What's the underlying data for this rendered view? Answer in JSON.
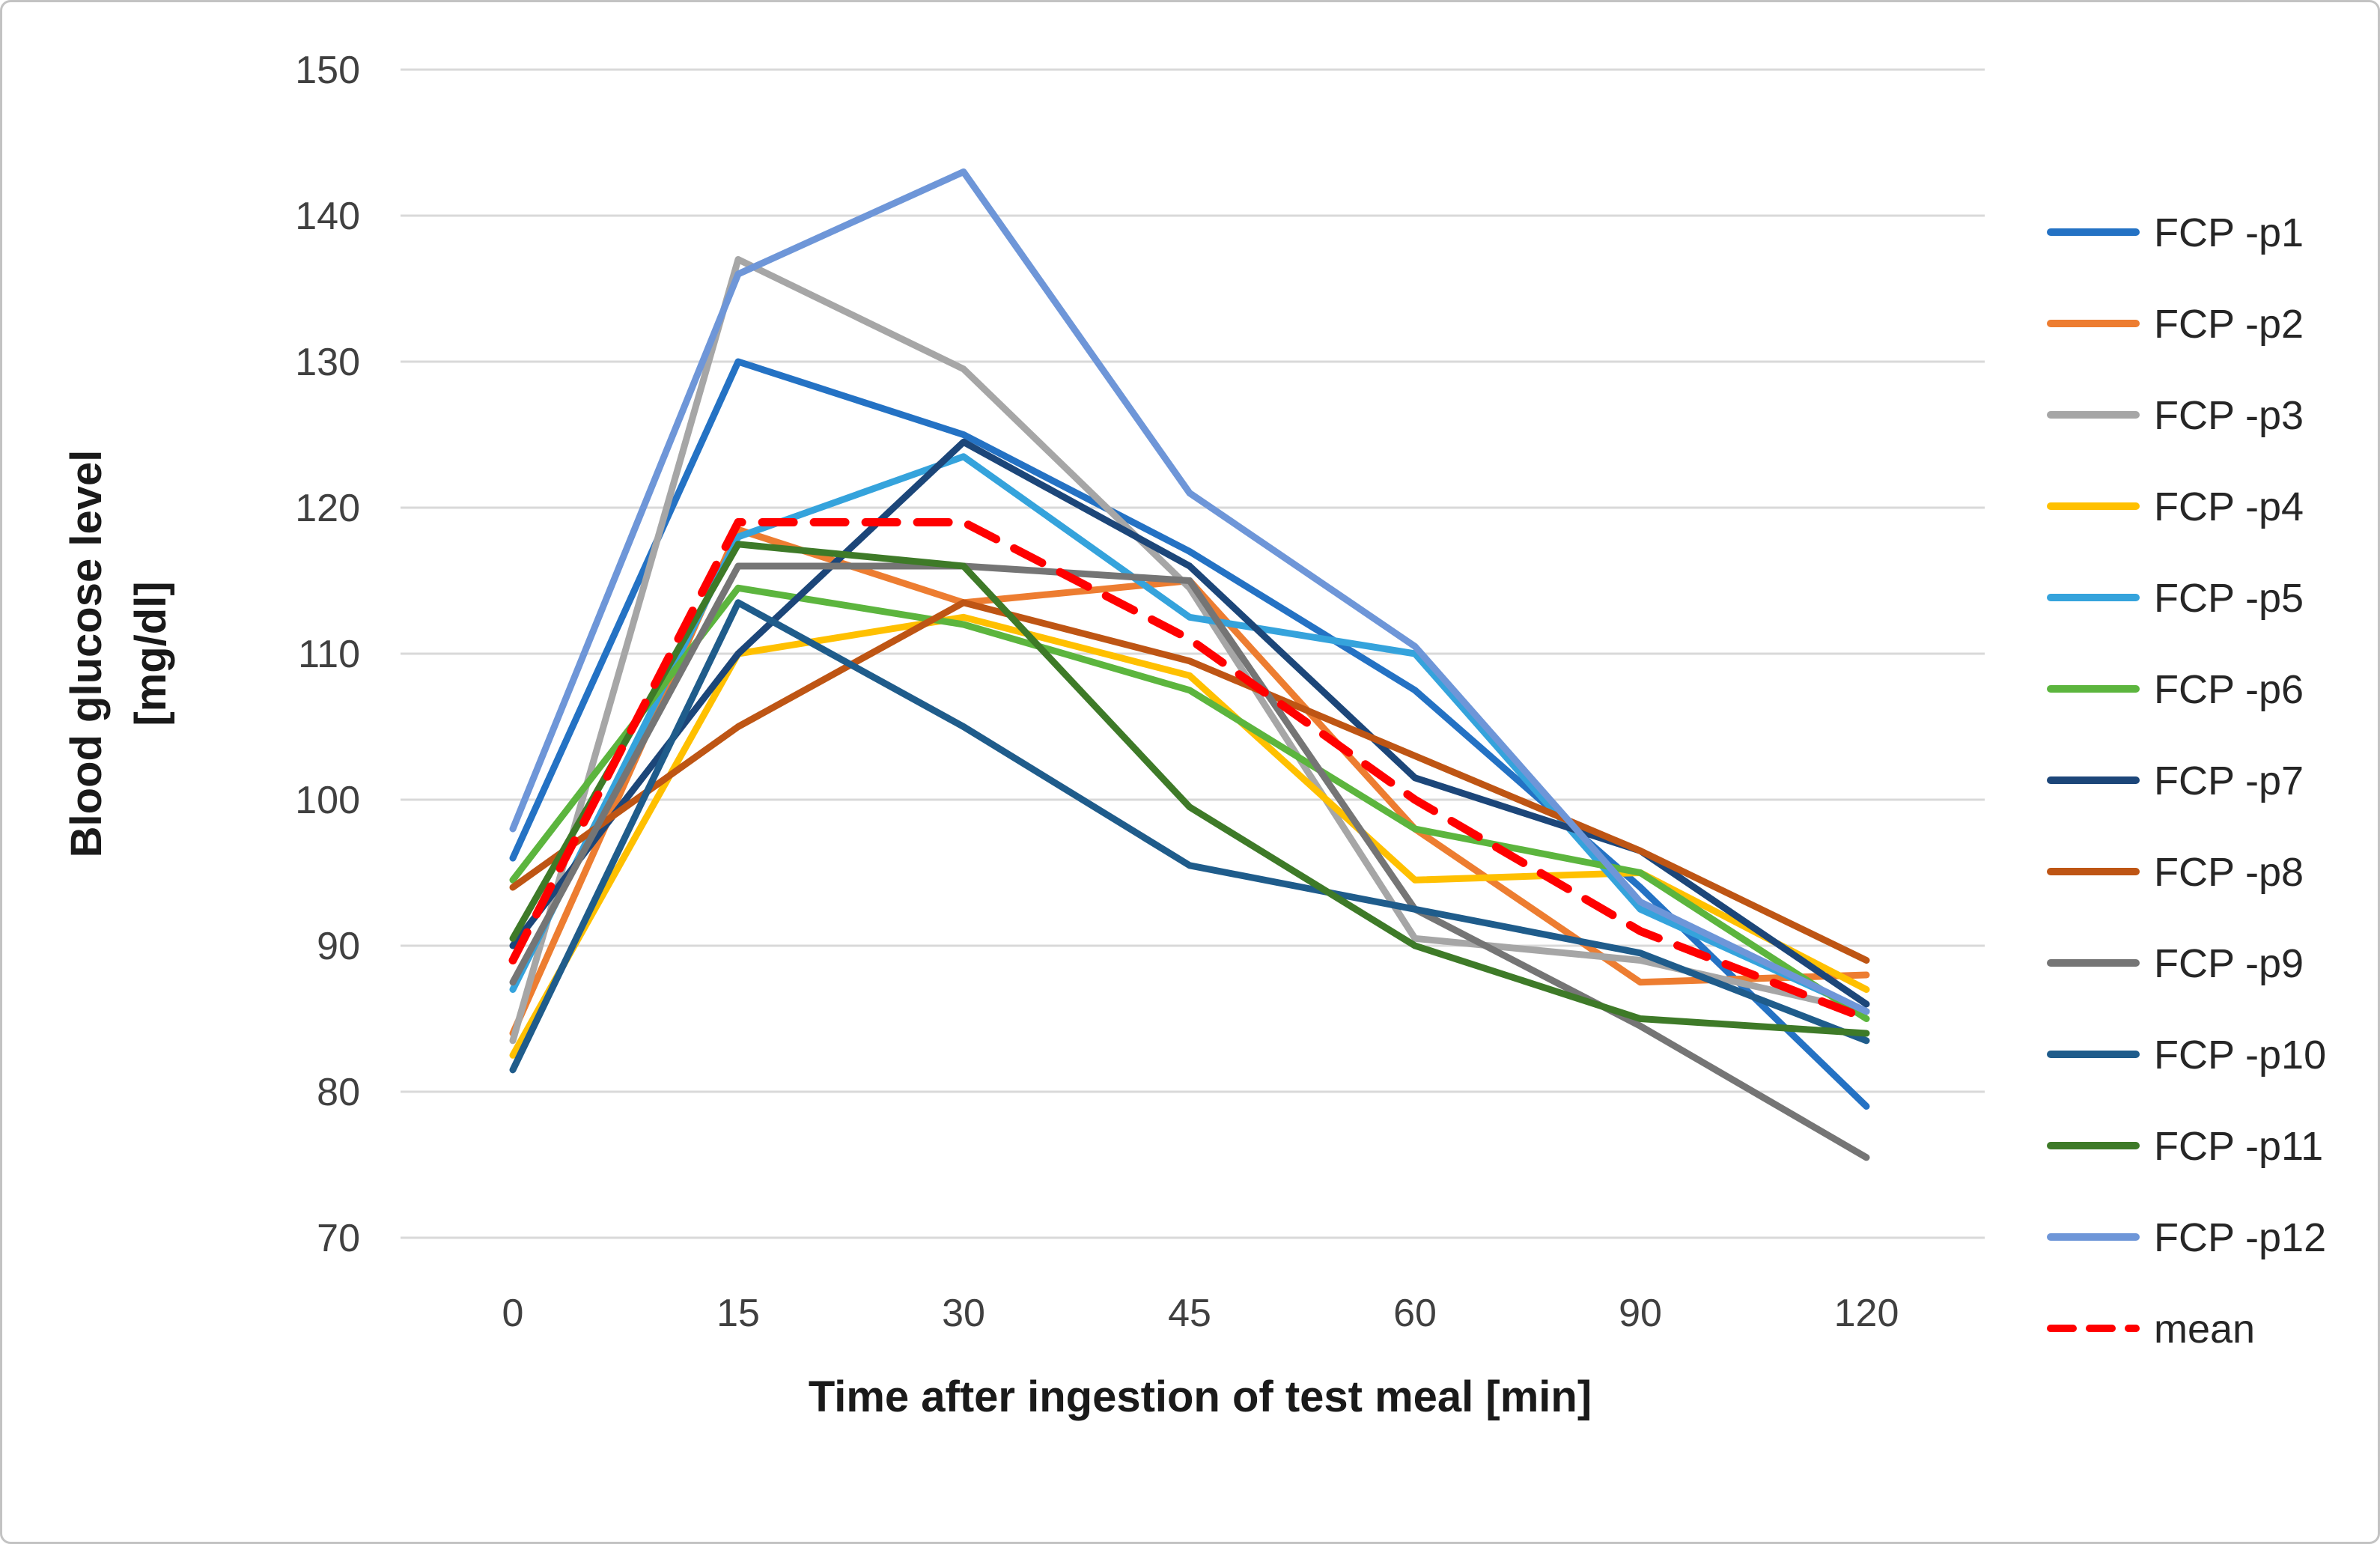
{
  "figure": {
    "background": "#FFFFFF",
    "border_color": "#C3C3C3"
  },
  "chart_data": {
    "type": "line",
    "title": "",
    "xlabel": "Time after ingestion of test meal [min]",
    "ylabel": "Blood glucose level",
    "ylabel_unit": "[mg/dl]",
    "x_tick_labels": [
      "0",
      "15",
      "30",
      "45",
      "60",
      "90",
      "120"
    ],
    "y_tick_labels": [
      "70",
      "80",
      "90",
      "100",
      "110",
      "120",
      "130",
      "140",
      "150"
    ],
    "ylim": [
      70,
      150
    ],
    "grid": true,
    "legend_position": "right",
    "axis_text_color": "#404040",
    "title_text_color": "#1A1A1A",
    "legend_text_color": "#262626",
    "gridline_color": "#D9D9D9",
    "series": [
      {
        "name": "FCP -p1",
        "color": "#2472C4",
        "dashed": false,
        "values": [
          96,
          130,
          125,
          117,
          107.5,
          94,
          79
        ]
      },
      {
        "name": "FCP -p2",
        "color": "#ED7D31",
        "dashed": false,
        "values": [
          84,
          118.5,
          113.5,
          115,
          98,
          87.5,
          88
        ]
      },
      {
        "name": "FCP -p3",
        "color": "#A6A6A6",
        "dashed": false,
        "values": [
          83.5,
          137,
          129.5,
          114.5,
          90.5,
          89,
          85.5
        ]
      },
      {
        "name": "FCP -p4",
        "color": "#FFC000",
        "dashed": false,
        "values": [
          82.5,
          110,
          112.5,
          108.5,
          94.5,
          95,
          87
        ]
      },
      {
        "name": "FCP -p5",
        "color": "#35A3DC",
        "dashed": false,
        "values": [
          87,
          118,
          123.5,
          112.5,
          110,
          92.5,
          85.5
        ]
      },
      {
        "name": "FCP -p6",
        "color": "#5CB53E",
        "dashed": false,
        "values": [
          94.5,
          114.5,
          112,
          107.5,
          98,
          95,
          85
        ]
      },
      {
        "name": "FCP -p7",
        "color": "#1C4679",
        "dashed": false,
        "values": [
          90,
          110,
          124.5,
          116,
          101.5,
          96.5,
          86
        ]
      },
      {
        "name": "FCP -p8",
        "color": "#BE5514",
        "dashed": false,
        "values": [
          94,
          105,
          113.5,
          109.5,
          103,
          96.5,
          89
        ]
      },
      {
        "name": "FCP -p9",
        "color": "#757575",
        "dashed": false,
        "values": [
          87.5,
          116,
          116,
          115,
          92.5,
          84.5,
          75.5
        ]
      },
      {
        "name": "FCP -p10",
        "color": "#1F5C8B",
        "dashed": false,
        "values": [
          81.5,
          113.5,
          105,
          95.5,
          92.5,
          89.5,
          83.5
        ]
      },
      {
        "name": "FCP -p11",
        "color": "#3E7A28",
        "dashed": false,
        "values": [
          90.5,
          117.5,
          116,
          99.5,
          90,
          85,
          84
        ]
      },
      {
        "name": "FCP -p12",
        "color": "#6E96D8",
        "dashed": false,
        "values": [
          98,
          136,
          143,
          121,
          110.5,
          93,
          85.5
        ]
      },
      {
        "name": "mean",
        "color": "#FF0000",
        "dashed": true,
        "values": [
          89,
          119,
          119,
          111,
          100,
          91,
          85
        ]
      }
    ]
  }
}
